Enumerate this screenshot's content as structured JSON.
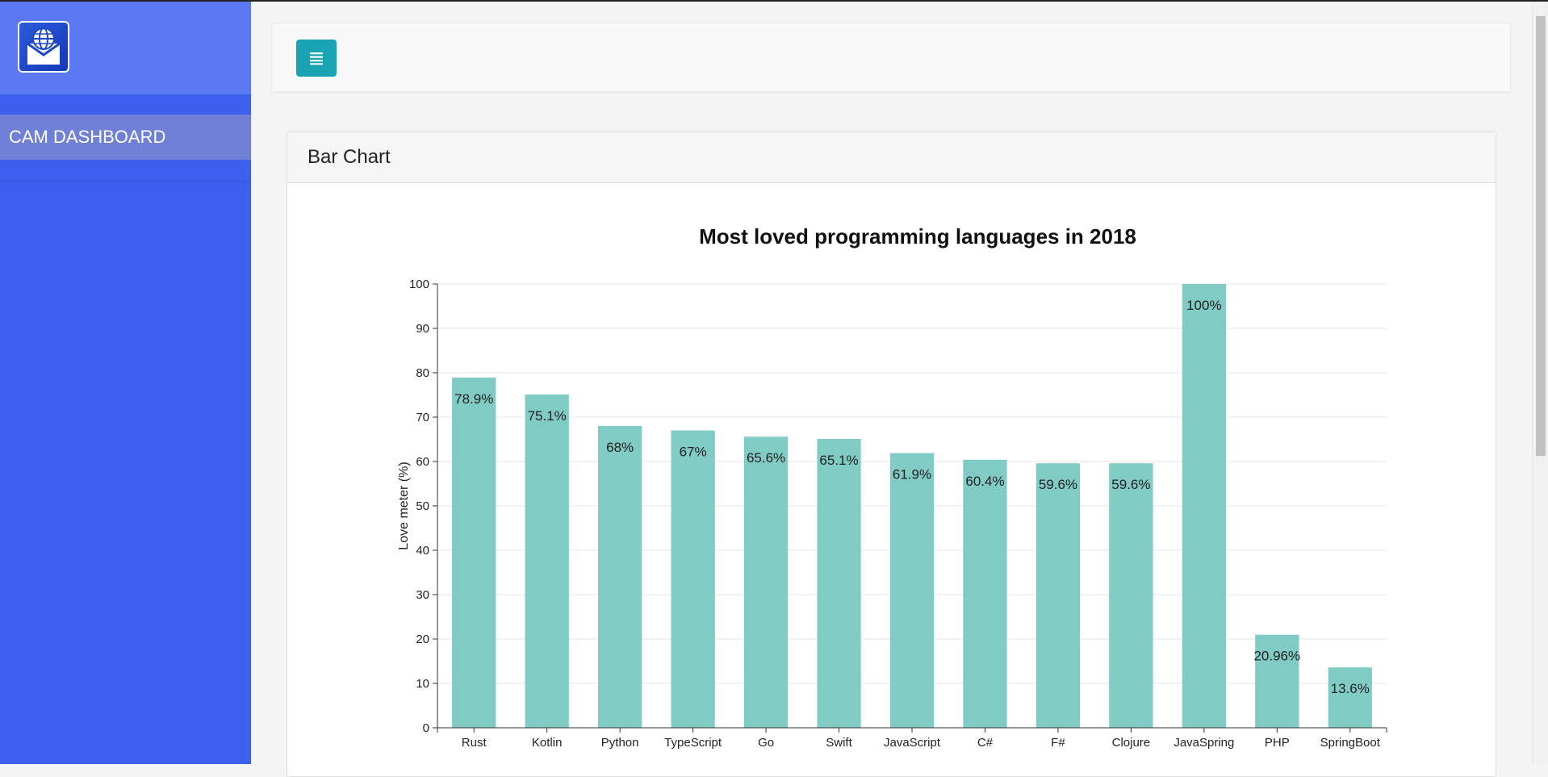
{
  "sidebar": {
    "brand_icon": "mail-globe-logo-icon",
    "items": [
      {
        "label": "CAM DASHBOARD"
      }
    ]
  },
  "topbar": {
    "menu_icon": "hamburger-list-icon"
  },
  "card": {
    "title": "Bar Chart"
  },
  "chart_data": {
    "type": "bar",
    "title": "Most loved programming languages in 2018",
    "xlabel": "",
    "ylabel": "Love meter (%)",
    "ylim": [
      0,
      100
    ],
    "yticks": [
      0,
      10,
      20,
      30,
      40,
      50,
      60,
      70,
      80,
      90,
      100
    ],
    "grid": true,
    "bar_color": "#80cbc4",
    "categories": [
      "Rust",
      "Kotlin",
      "Python",
      "TypeScript",
      "Go",
      "Swift",
      "JavaScript",
      "C#",
      "F#",
      "Clojure",
      "JavaSpring",
      "PHP",
      "SpringBoot"
    ],
    "values": [
      78.9,
      75.1,
      68,
      67,
      65.6,
      65.1,
      61.9,
      60.4,
      59.6,
      59.6,
      100,
      20.96,
      13.6
    ],
    "data_labels": [
      "78.9%",
      "75.1%",
      "68%",
      "67%",
      "65.6%",
      "65.1%",
      "61.9%",
      "60.4%",
      "59.6%",
      "59.6%",
      "100%",
      "20.96%",
      "13.6%"
    ]
  }
}
